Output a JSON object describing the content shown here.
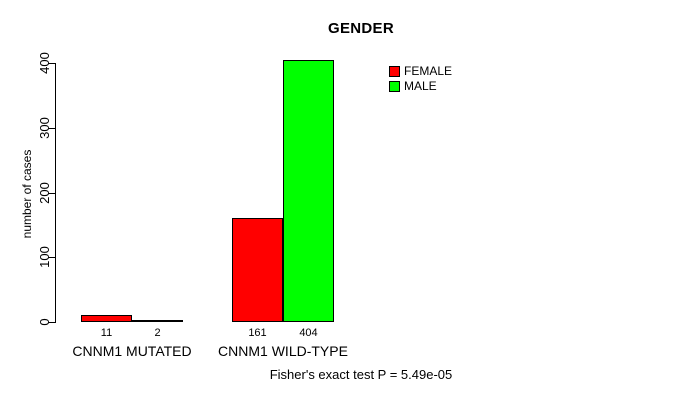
{
  "chart_data": {
    "type": "bar",
    "title": "GENDER",
    "categories": [
      "CNNM1 MUTATED",
      "CNNM1 WILD-TYPE"
    ],
    "series": [
      {
        "name": "FEMALE",
        "color": "#ff0000",
        "values": [
          11,
          161
        ]
      },
      {
        "name": "MALE",
        "color": "#00ff00",
        "values": [
          2,
          404
        ]
      }
    ],
    "xlabel": "",
    "ylabel": "number of cases",
    "ylim": [
      0,
      400
    ],
    "yticks": [
      0,
      100,
      200,
      300,
      400
    ],
    "grid": false,
    "legend_position": "top-right",
    "bar_value_labels": [
      [
        11,
        2
      ],
      [
        161,
        404
      ]
    ],
    "annotation": "Fisher's exact test P = 5.49e-05"
  },
  "footer": {
    "text": "Fisher's exact test P = 5.49e-05"
  },
  "colors": {
    "female": "#ff0000",
    "male": "#00ff00",
    "axis": "#000000",
    "background": "#ffffff"
  }
}
